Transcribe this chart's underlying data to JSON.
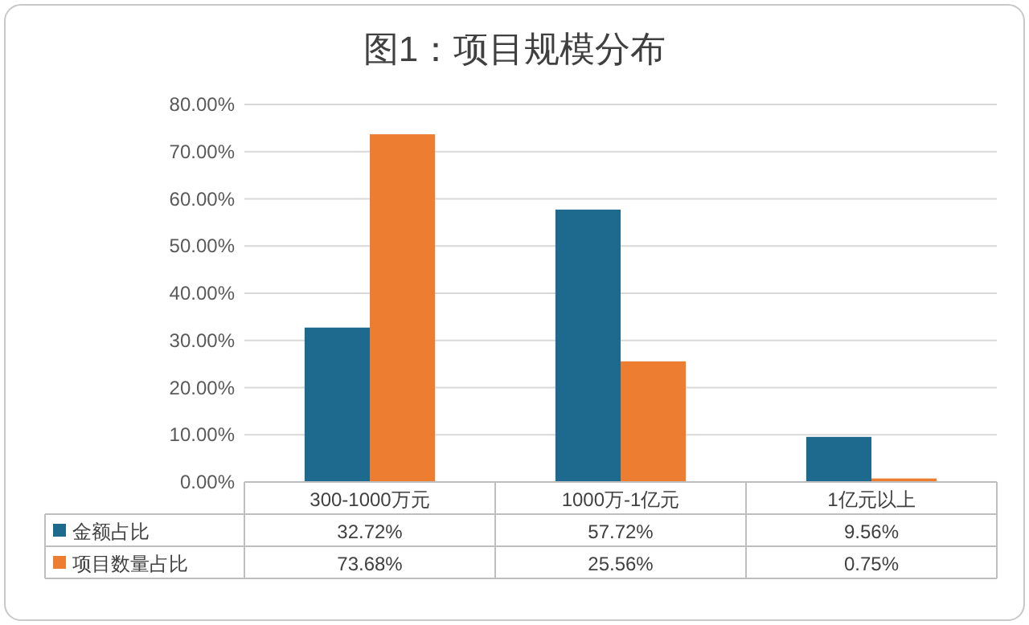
{
  "chart_data": {
    "type": "bar",
    "title": "图1：项目规模分布",
    "categories": [
      "300-1000万元",
      "1000万-1亿元",
      "1亿元以上"
    ],
    "series": [
      {
        "name": "金额占比",
        "color": "#1d6a8e",
        "values": [
          32.72,
          57.72,
          9.56
        ],
        "value_labels": [
          "32.72%",
          "57.72%",
          "9.56%"
        ]
      },
      {
        "name": "项目数量占比",
        "color": "#ed7d31",
        "values": [
          73.68,
          25.56,
          0.75
        ],
        "value_labels": [
          "73.68%",
          "25.56%",
          "0.75%"
        ]
      }
    ],
    "ylim": [
      0,
      80
    ],
    "yticks": [
      {
        "value": 0,
        "label": "0.00%"
      },
      {
        "value": 10,
        "label": "10.00%"
      },
      {
        "value": 20,
        "label": "20.00%"
      },
      {
        "value": 30,
        "label": "30.00%"
      },
      {
        "value": 40,
        "label": "40.00%"
      },
      {
        "value": 50,
        "label": "50.00%"
      },
      {
        "value": 60,
        "label": "60.00%"
      },
      {
        "value": 70,
        "label": "70.00%"
      },
      {
        "value": 80,
        "label": "80.00%"
      }
    ],
    "grid": "y",
    "legend": "bottom"
  }
}
